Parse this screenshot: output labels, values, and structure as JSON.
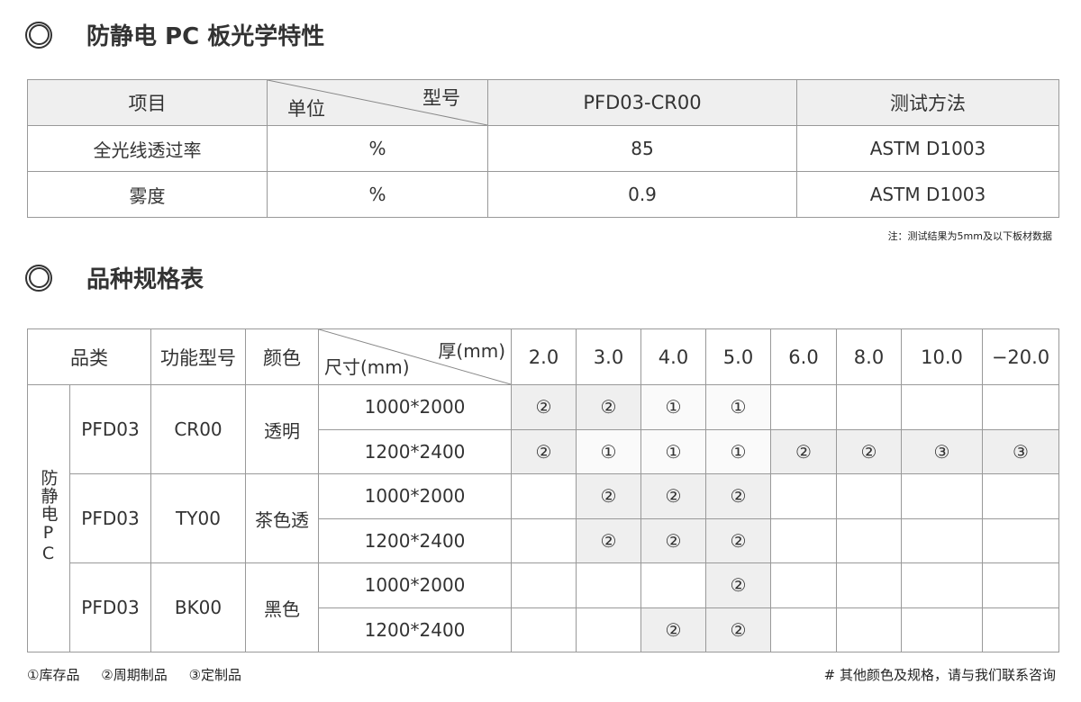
{
  "section1": {
    "title": "防静电 PC 板光学特性"
  },
  "optical_table": {
    "headers": {
      "item": "项目",
      "unit": "单位",
      "model": "型号",
      "model_name": "PFD03-CR00",
      "method": "测试方法"
    },
    "rows": [
      {
        "item": "全光线透过率",
        "unit": "%",
        "value": "85",
        "method": "ASTM D1003"
      },
      {
        "item": "雾度",
        "unit": "%",
        "value": "0.9",
        "method": "ASTM D1003"
      }
    ],
    "note": "注：测试结果为5mm及以下板材数据"
  },
  "section2": {
    "title": "品种规格表"
  },
  "spec_table": {
    "headers": {
      "category": "品类",
      "model": "功能型号",
      "color": "颜色",
      "thickness": "厚(mm)",
      "size": "尺寸(mm)"
    },
    "thicknesses": [
      "2.0",
      "3.0",
      "4.0",
      "5.0",
      "6.0",
      "8.0",
      "10.0",
      "−20.0"
    ],
    "group_label": "防静电PC",
    "groups": [
      {
        "series": "PFD03",
        "model": "CR00",
        "color": "透明",
        "rows": [
          {
            "size": "1000*2000",
            "cells": [
              "②",
              "②",
              "①",
              "①",
              "",
              "",
              "",
              ""
            ]
          },
          {
            "size": "1200*2400",
            "cells": [
              "②",
              "①",
              "①",
              "①",
              "②",
              "②",
              "③",
              "③"
            ]
          }
        ]
      },
      {
        "series": "PFD03",
        "model": "TY00",
        "color": "茶色透",
        "rows": [
          {
            "size": "1000*2000",
            "cells": [
              "",
              "②",
              "②",
              "②",
              "",
              "",
              "",
              ""
            ]
          },
          {
            "size": "1200*2400",
            "cells": [
              "",
              "②",
              "②",
              "②",
              "",
              "",
              "",
              ""
            ]
          }
        ]
      },
      {
        "series": "PFD03",
        "model": "BK00",
        "color": "黑色",
        "rows": [
          {
            "size": "1000*2000",
            "cells": [
              "",
              "",
              "",
              "②",
              "",
              "",
              "",
              ""
            ]
          },
          {
            "size": "1200*2400",
            "cells": [
              "",
              "",
              "②",
              "②",
              "",
              "",
              "",
              ""
            ]
          }
        ]
      }
    ],
    "shading": [
      [
        "g",
        "g",
        "l",
        "l",
        "",
        "",
        "",
        ""
      ],
      [
        "g",
        "l",
        "l",
        "l",
        "g",
        "g",
        "g",
        "g"
      ],
      [
        "",
        "g",
        "g",
        "g",
        "",
        "",
        "",
        ""
      ],
      [
        "",
        "g",
        "g",
        "g",
        "",
        "",
        "",
        ""
      ],
      [
        "",
        "",
        "",
        "g",
        "",
        "",
        "",
        ""
      ],
      [
        "",
        "",
        "g",
        "g",
        "",
        "",
        "",
        ""
      ]
    ]
  },
  "footer": {
    "legend": [
      "①库存品",
      "②周期制品",
      "③定制品"
    ],
    "contact": "# 其他颜色及规格，请与我们联系咨询"
  }
}
